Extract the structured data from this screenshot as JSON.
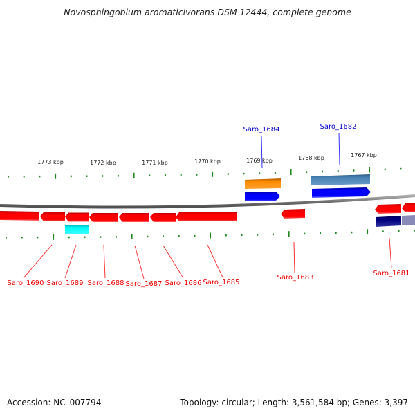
{
  "title": "Novosphingobium aromaticivorans DSM 12444, complete genome",
  "footer": {
    "accession": "Accession: NC_007794",
    "summary": "Topology: circular; Length: 3,561,584 bp; Genes: 3,397"
  },
  "colors": {
    "backbone": "#808080",
    "tick": "#228b22",
    "reverse_gene": "#ff0000",
    "forward_gene": "#0000ff",
    "forward_label": "#0000cc",
    "reverse_label": "#ee0000",
    "orange_feature": "#ff8c00",
    "steelblue_feature": "#4682b4",
    "cyan_feature": "#00ffff",
    "navy_feature": "#000080"
  },
  "scale_labels": [
    "1773 kbp",
    "1772 kbp",
    "1771 kbp",
    "1770 kbp",
    "1769 kbp",
    "1768 kbp",
    "1767 kbp"
  ],
  "forward_labels": [
    "Saro_1684",
    "Saro_1682"
  ],
  "reverse_labels": [
    "Saro_1690",
    "Saro_1689",
    "Saro_1688",
    "Saro_1687",
    "Saro_1686",
    "Saro_1685",
    "Saro_1683",
    "Saro_1681"
  ]
}
